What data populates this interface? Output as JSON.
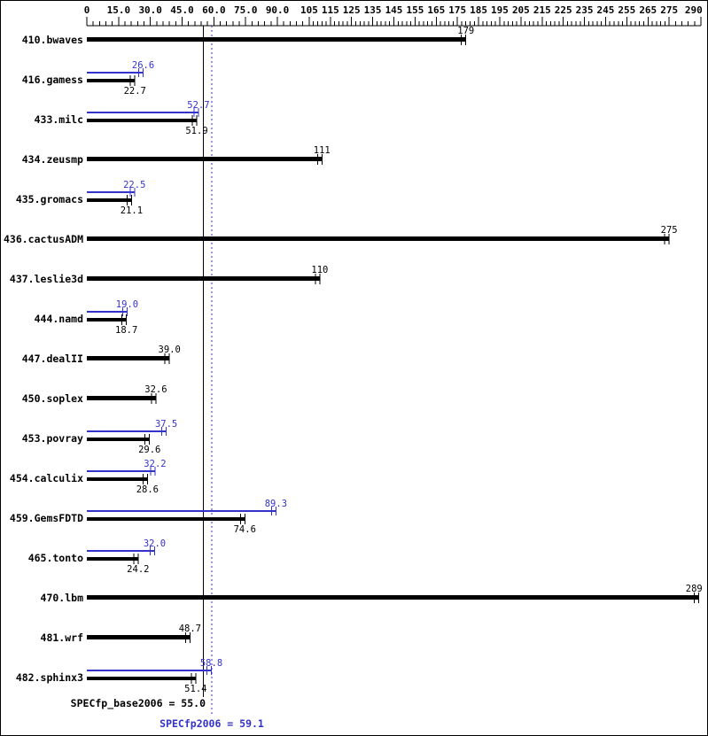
{
  "figure": {
    "background": "#ffffff",
    "border_color": "#000000"
  },
  "chart_data": {
    "type": "bar",
    "orientation": "horizontal",
    "grid": "off",
    "legend": "none",
    "colors": {
      "base": "#000000",
      "peak": "#3333cc"
    },
    "axis": {
      "min": 0,
      "max": 290,
      "position": "top",
      "major_tick_values": [
        0,
        15,
        30,
        45,
        60,
        75,
        90,
        105,
        115,
        125,
        135,
        145,
        155,
        165,
        175,
        185,
        195,
        205,
        215,
        225,
        235,
        245,
        255,
        265,
        275,
        290
      ],
      "major_tick_labels": [
        "0",
        "15.0",
        "30.0",
        "45.0",
        "60.0",
        "75.0",
        "90.0",
        "105",
        "115",
        "125",
        "135",
        "145",
        "155",
        "165",
        "175",
        "185",
        "195",
        "205",
        "215",
        "225",
        "235",
        "245",
        "255",
        "265",
        "275",
        "290"
      ],
      "minor_tick_ranges": [
        {
          "from": 0,
          "to": 105,
          "step": 3
        },
        {
          "from": 105,
          "to": 275,
          "step": 2
        },
        {
          "from": 275,
          "to": 290,
          "step": 3
        }
      ]
    },
    "benchmarks": [
      {
        "name": "410.bwaves",
        "base": 179,
        "base_label": "179",
        "peak": null,
        "peak_label": null
      },
      {
        "name": "416.gamess",
        "base": 22.7,
        "base_label": "22.7",
        "peak": 26.6,
        "peak_label": "26.6"
      },
      {
        "name": "433.milc",
        "base": 51.9,
        "base_label": "51.9",
        "peak": 52.7,
        "peak_label": "52.7"
      },
      {
        "name": "434.zeusmp",
        "base": 111,
        "base_label": "111",
        "peak": null,
        "peak_label": null
      },
      {
        "name": "435.gromacs",
        "base": 21.1,
        "base_label": "21.1",
        "peak": 22.5,
        "peak_label": "22.5"
      },
      {
        "name": "436.cactusADM",
        "base": 275,
        "base_label": "275",
        "peak": null,
        "peak_label": null
      },
      {
        "name": "437.leslie3d",
        "base": 110,
        "base_label": "110",
        "peak": null,
        "peak_label": null
      },
      {
        "name": "444.namd",
        "base": 18.7,
        "base_label": "18.7",
        "peak": 19.0,
        "peak_label": "19.0"
      },
      {
        "name": "447.dealII",
        "base": 39.0,
        "base_label": "39.0",
        "peak": null,
        "peak_label": null
      },
      {
        "name": "450.soplex",
        "base": 32.6,
        "base_label": "32.6",
        "peak": null,
        "peak_label": null
      },
      {
        "name": "453.povray",
        "base": 29.6,
        "base_label": "29.6",
        "peak": 37.5,
        "peak_label": "37.5"
      },
      {
        "name": "454.calculix",
        "base": 28.6,
        "base_label": "28.6",
        "peak": 32.2,
        "peak_label": "32.2"
      },
      {
        "name": "459.GemsFDTD",
        "base": 74.6,
        "base_label": "74.6",
        "peak": 89.3,
        "peak_label": "89.3"
      },
      {
        "name": "465.tonto",
        "base": 24.2,
        "base_label": "24.2",
        "peak": 32.0,
        "peak_label": "32.0"
      },
      {
        "name": "470.lbm",
        "base": 289,
        "base_label": "289",
        "peak": null,
        "peak_label": null
      },
      {
        "name": "481.wrf",
        "base": 48.7,
        "base_label": "48.7",
        "peak": null,
        "peak_label": null
      },
      {
        "name": "482.sphinx3",
        "base": 51.4,
        "base_label": "51.4",
        "peak": 58.8,
        "peak_label": "58.8"
      }
    ],
    "reference_lines": [
      {
        "name": "base-mean",
        "label": "SPECfp_base2006 = 55.0",
        "value": 55.0,
        "color": "#000000",
        "style": "solid"
      },
      {
        "name": "peak-mean",
        "label": "SPECfp2006 = 59.1",
        "value": 59.1,
        "color": "#3333cc",
        "style": "dotted"
      }
    ]
  }
}
